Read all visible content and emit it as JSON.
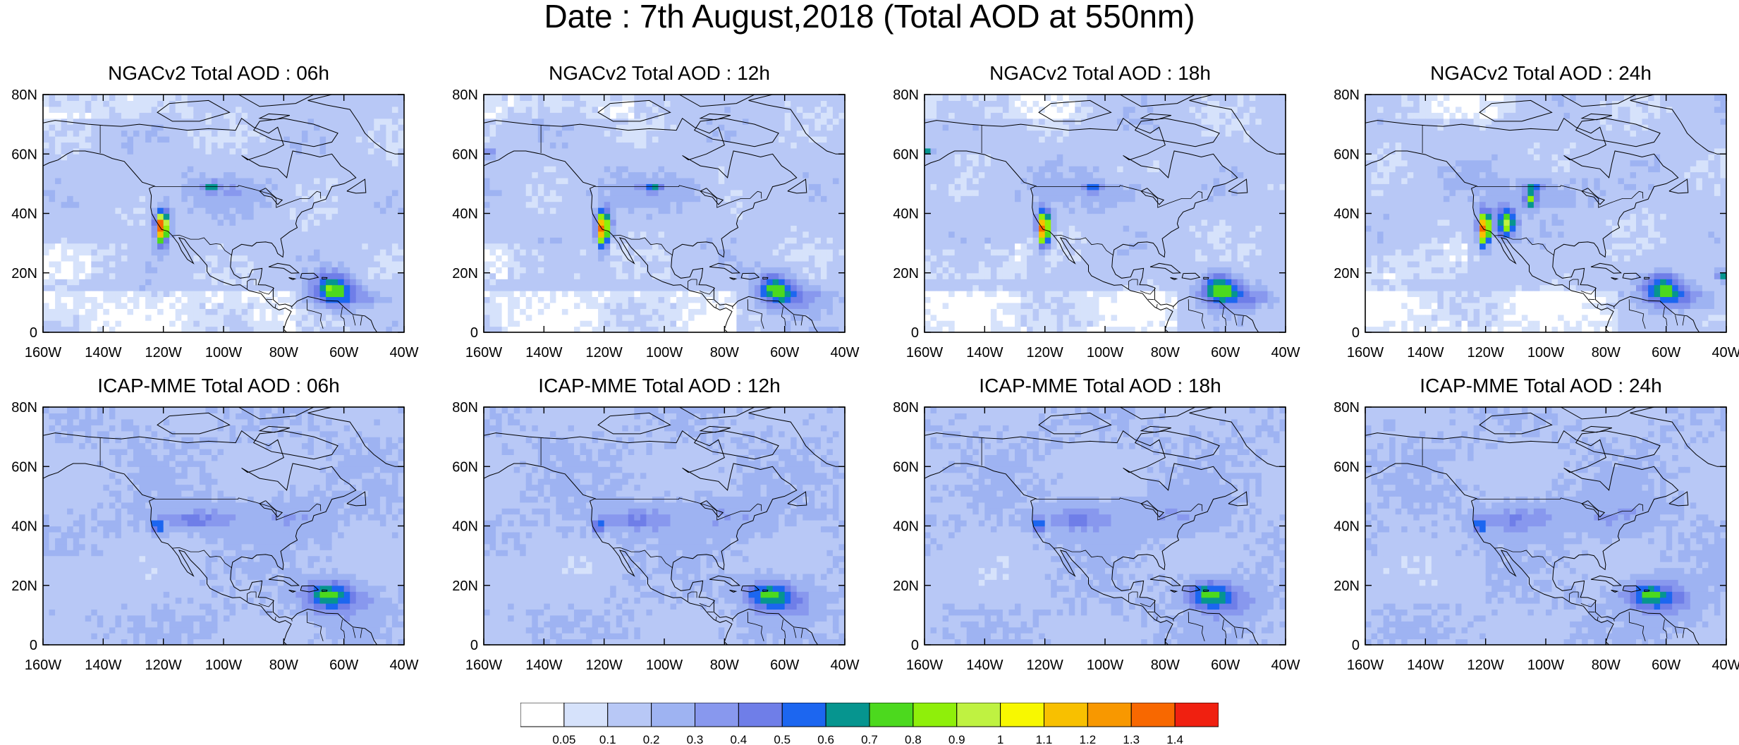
{
  "main_title": "Date : 7th August,2018 (Total AOD at 550nm)",
  "panels": [
    {
      "title": "NGACv2 Total AOD : 06h",
      "model": "NGACv2",
      "lead": "06h"
    },
    {
      "title": "NGACv2 Total AOD : 12h",
      "model": "NGACv2",
      "lead": "12h"
    },
    {
      "title": "NGACv2 Total AOD : 18h",
      "model": "NGACv2",
      "lead": "18h"
    },
    {
      "title": "NGACv2 Total AOD : 24h",
      "model": "NGACv2",
      "lead": "24h"
    },
    {
      "title": "ICAP-MME Total AOD : 06h",
      "model": "ICAP-MME",
      "lead": "06h"
    },
    {
      "title": "ICAP-MME Total AOD : 12h",
      "model": "ICAP-MME",
      "lead": "12h"
    },
    {
      "title": "ICAP-MME Total AOD : 18h",
      "model": "ICAP-MME",
      "lead": "18h"
    },
    {
      "title": "ICAP-MME Total AOD : 24h",
      "model": "ICAP-MME",
      "lead": "24h"
    }
  ],
  "map": {
    "lon_range": [
      -160,
      -40
    ],
    "lat_range": [
      0,
      80
    ],
    "x_ticks": [
      "160W",
      "140W",
      "120W",
      "100W",
      "80W",
      "60W",
      "40W"
    ],
    "y_ticks": [
      "0",
      "20N",
      "40N",
      "60N",
      "80N"
    ]
  },
  "colorbar": {
    "labels": [
      "0.05",
      "0.1",
      "0.2",
      "0.3",
      "0.4",
      "0.5",
      "0.6",
      "0.7",
      "0.8",
      "0.9",
      "1",
      "1.1",
      "1.2",
      "1.3",
      "1.4"
    ],
    "colors": [
      "#ffffff",
      "#d6e2fb",
      "#b8c8f6",
      "#9eb3f2",
      "#8898ee",
      "#6f7ee8",
      "#1c66f0",
      "#06958f",
      "#4cd91e",
      "#8fef0a",
      "#bff241",
      "#f8f800",
      "#f8c000",
      "#f89800",
      "#f86800",
      "#f02010"
    ]
  }
}
